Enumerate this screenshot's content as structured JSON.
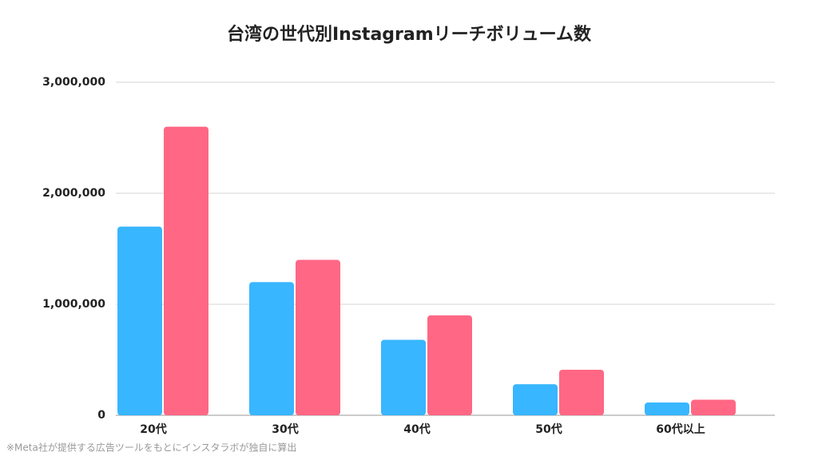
{
  "chart_data": {
    "type": "bar",
    "title": "台湾の世代別Instagramリーチボリューム数",
    "categories": [
      "20代",
      "30代",
      "40代",
      "50代",
      "60代以上"
    ],
    "series": [
      {
        "color": "#38b6ff",
        "values": [
          1700000,
          1200000,
          680000,
          280000,
          115000
        ]
      },
      {
        "color": "#ff6785",
        "values": [
          2600000,
          1400000,
          900000,
          410000,
          140000
        ]
      }
    ],
    "ylim": [
      0,
      3000000
    ],
    "yticks": [
      0,
      {
        "value": 1000000,
        "label": "1,000,000"
      },
      {
        "value": 2000000,
        "label": "2,000,000"
      },
      {
        "value": 3000000,
        "label": "3,000,000"
      }
    ],
    "grid": true,
    "footnote": "※Meta社が提供する広告ツールをもとにインスタラボが独自に算出"
  }
}
